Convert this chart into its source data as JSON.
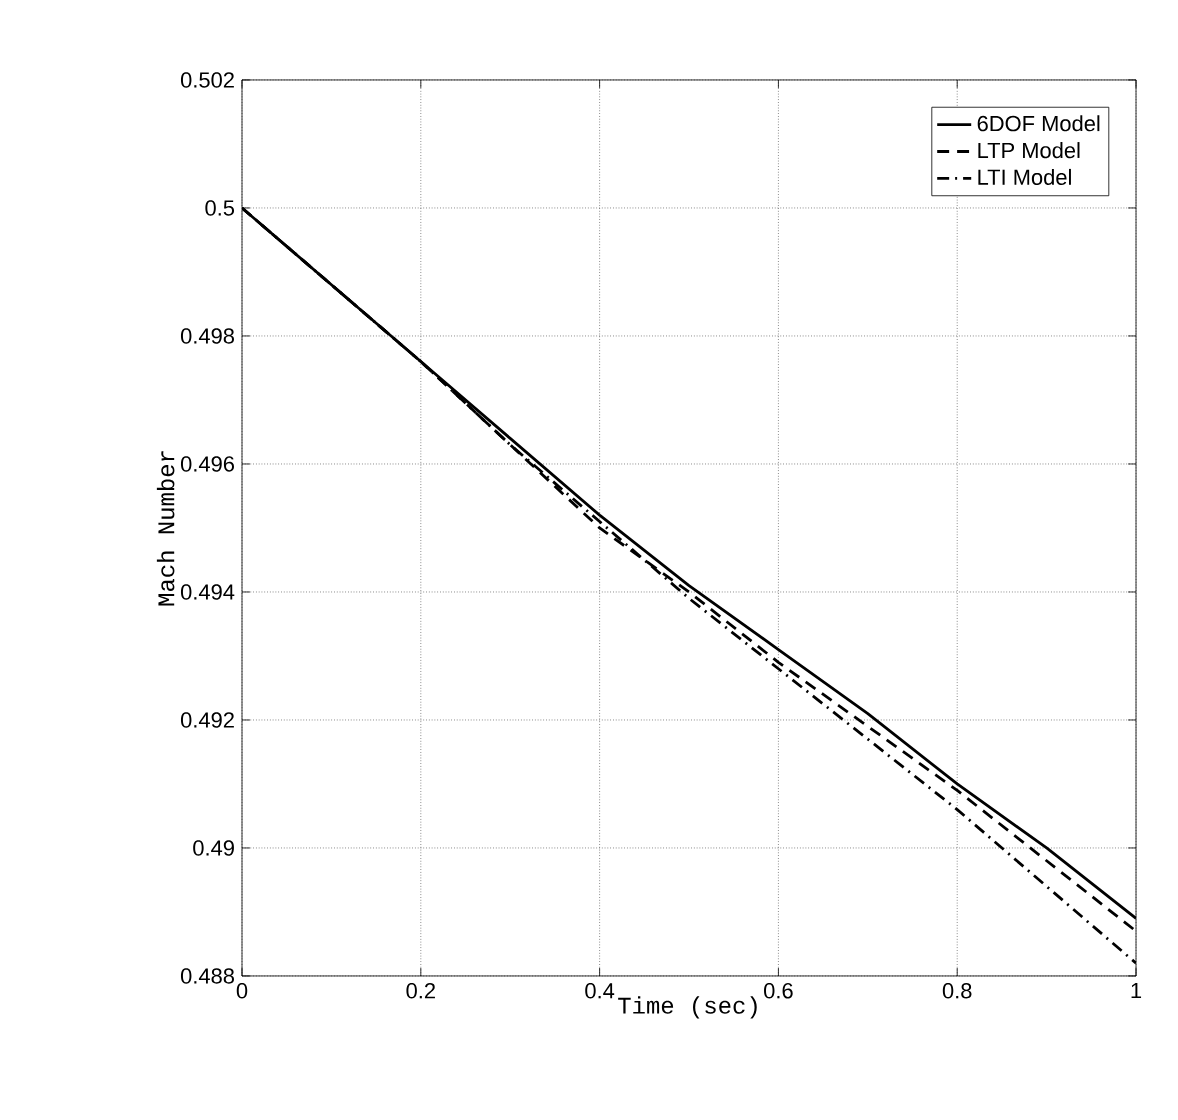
{
  "chart_data": {
    "type": "line",
    "xlabel": "Time (sec)",
    "ylabel": "Mach Number",
    "x": [
      0,
      0.1,
      0.2,
      0.3,
      0.4,
      0.5,
      0.6,
      0.7,
      0.8,
      0.9,
      1
    ],
    "series": [
      {
        "name": "6DOF Model",
        "color": "#000000",
        "line_style": "solid",
        "values": [
          0.5,
          0.4988,
          0.4976,
          0.4964,
          0.4952,
          0.4941,
          0.4931,
          0.4921,
          0.491,
          0.49,
          0.4889
        ]
      },
      {
        "name": "LTP Model",
        "color": "#000000",
        "line_style": "dashed",
        "values": [
          0.5,
          0.4988,
          0.4976,
          0.4963,
          0.495,
          0.494,
          0.4929,
          0.4919,
          0.4909,
          0.4898,
          0.4887
        ]
      },
      {
        "name": "LTI Model",
        "color": "#000000",
        "line_style": "dashdot",
        "values": [
          0.5,
          0.4988,
          0.4976,
          0.4963,
          0.4951,
          0.4939,
          0.4928,
          0.4917,
          0.4906,
          0.4894,
          0.4882
        ]
      }
    ],
    "xlim": [
      0,
      1
    ],
    "ylim": [
      0.488,
      0.502
    ],
    "xticks": [
      0,
      0.2,
      0.4,
      0.6,
      0.8,
      1
    ],
    "yticks": [
      0.488,
      0.49,
      0.492,
      0.494,
      0.496,
      0.498,
      0.5,
      0.502
    ],
    "grid": true,
    "legend": "top right"
  }
}
